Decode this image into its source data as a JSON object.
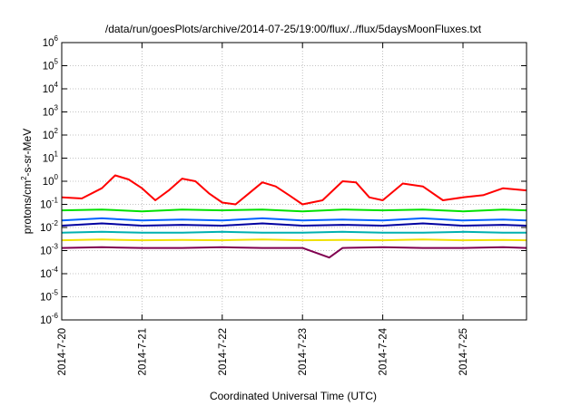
{
  "chart_data": {
    "type": "line",
    "title": "/data/run/goesPlots/archive/2014-07-25/19:00/flux/../flux/5daysMoonFluxes.txt",
    "xlabel": "Coordinated Universal Time (UTC)",
    "ylabel_parts": [
      "protons/cm",
      "2",
      "-s-sr-MeV"
    ],
    "y_scale": "log",
    "ylim": [
      1e-06,
      1000000.0
    ],
    "xlim": [
      "2014-07-20",
      "2014-07-25T19:00"
    ],
    "x_tick_labels": [
      "2014-7-20",
      "2014-7-21",
      "2014-7-22",
      "2014-7-23",
      "2014-7-24",
      "2014-7-25"
    ],
    "y_ticks": [
      {
        "base": "10",
        "exp": "-6"
      },
      {
        "base": "10",
        "exp": "-5"
      },
      {
        "base": "10",
        "exp": "-4"
      },
      {
        "base": "10",
        "exp": "-3"
      },
      {
        "base": "10",
        "exp": "-2"
      },
      {
        "base": "10",
        "exp": "-1"
      },
      {
        "base": "10",
        "exp": "0"
      },
      {
        "base": "10",
        "exp": "1"
      },
      {
        "base": "10",
        "exp": "2"
      },
      {
        "base": "10",
        "exp": "3"
      },
      {
        "base": "10",
        "exp": "4"
      },
      {
        "base": "10",
        "exp": "5"
      },
      {
        "base": "10",
        "exp": "6"
      }
    ],
    "grid": true,
    "series": [
      {
        "color": "#ff0000",
        "x": [
          "2014-07-20T00:00",
          "2014-07-20T06:00",
          "2014-07-20T12:00",
          "2014-07-20T16:00",
          "2014-07-20T20:00",
          "2014-07-21T00:00",
          "2014-07-21T04:00",
          "2014-07-21T08:00",
          "2014-07-21T12:00",
          "2014-07-21T16:00",
          "2014-07-21T20:00",
          "2014-07-22T00:00",
          "2014-07-22T04:00",
          "2014-07-22T08:00",
          "2014-07-22T12:00",
          "2014-07-22T16:00",
          "2014-07-22T20:00",
          "2014-07-23T00:00",
          "2014-07-23T06:00",
          "2014-07-23T12:00",
          "2014-07-23T16:00",
          "2014-07-23T20:00",
          "2014-07-24T00:00",
          "2014-07-24T06:00",
          "2014-07-24T12:00",
          "2014-07-24T18:00",
          "2014-07-25T00:00",
          "2014-07-25T06:00",
          "2014-07-25T12:00",
          "2014-07-25T19:00"
        ],
        "values": [
          0.2,
          0.18,
          0.5,
          1.8,
          1.2,
          0.5,
          0.15,
          0.4,
          1.3,
          1.0,
          0.3,
          0.12,
          0.1,
          0.3,
          0.9,
          0.6,
          0.25,
          0.1,
          0.15,
          1.0,
          0.9,
          0.2,
          0.15,
          0.8,
          0.6,
          0.15,
          0.2,
          0.25,
          0.5,
          0.4
        ]
      },
      {
        "color": "#00e000",
        "x": [
          "2014-07-20T00:00",
          "2014-07-20T12:00",
          "2014-07-21T00:00",
          "2014-07-21T12:00",
          "2014-07-22T00:00",
          "2014-07-22T12:00",
          "2014-07-23T00:00",
          "2014-07-23T12:00",
          "2014-07-24T00:00",
          "2014-07-24T12:00",
          "2014-07-25T00:00",
          "2014-07-25T12:00",
          "2014-07-25T19:00"
        ],
        "values": [
          0.055,
          0.06,
          0.05,
          0.06,
          0.055,
          0.06,
          0.05,
          0.06,
          0.055,
          0.06,
          0.05,
          0.06,
          0.055
        ]
      },
      {
        "color": "#0060ff",
        "x": [
          "2014-07-20T00:00",
          "2014-07-20T12:00",
          "2014-07-21T00:00",
          "2014-07-21T12:00",
          "2014-07-22T00:00",
          "2014-07-22T12:00",
          "2014-07-23T00:00",
          "2014-07-23T12:00",
          "2014-07-24T00:00",
          "2014-07-24T12:00",
          "2014-07-25T00:00",
          "2014-07-25T12:00",
          "2014-07-25T19:00"
        ],
        "values": [
          0.02,
          0.025,
          0.02,
          0.022,
          0.02,
          0.025,
          0.02,
          0.022,
          0.02,
          0.025,
          0.02,
          0.022,
          0.02
        ]
      },
      {
        "color": "#0000a0",
        "x": [
          "2014-07-20T00:00",
          "2014-07-20T12:00",
          "2014-07-21T00:00",
          "2014-07-21T12:00",
          "2014-07-22T00:00",
          "2014-07-22T12:00",
          "2014-07-23T00:00",
          "2014-07-23T12:00",
          "2014-07-24T00:00",
          "2014-07-24T12:00",
          "2014-07-25T00:00",
          "2014-07-25T12:00",
          "2014-07-25T19:00"
        ],
        "values": [
          0.012,
          0.015,
          0.012,
          0.013,
          0.012,
          0.015,
          0.012,
          0.013,
          0.012,
          0.015,
          0.012,
          0.013,
          0.012
        ]
      },
      {
        "color": "#00b0b0",
        "x": [
          "2014-07-20T00:00",
          "2014-07-20T12:00",
          "2014-07-21T00:00",
          "2014-07-21T12:00",
          "2014-07-22T00:00",
          "2014-07-22T12:00",
          "2014-07-23T00:00",
          "2014-07-23T12:00",
          "2014-07-24T00:00",
          "2014-07-24T12:00",
          "2014-07-25T00:00",
          "2014-07-25T12:00",
          "2014-07-25T19:00"
        ],
        "values": [
          0.006,
          0.0065,
          0.006,
          0.006,
          0.0065,
          0.006,
          0.006,
          0.0065,
          0.006,
          0.006,
          0.0065,
          0.006,
          0.006
        ]
      },
      {
        "color": "#f0e000",
        "x": [
          "2014-07-20T00:00",
          "2014-07-20T12:00",
          "2014-07-21T00:00",
          "2014-07-21T12:00",
          "2014-07-22T00:00",
          "2014-07-22T12:00",
          "2014-07-23T00:00",
          "2014-07-23T12:00",
          "2014-07-24T00:00",
          "2014-07-24T12:00",
          "2014-07-25T00:00",
          "2014-07-25T12:00",
          "2014-07-25T19:00"
        ],
        "values": [
          0.0028,
          0.003,
          0.0028,
          0.0029,
          0.0028,
          0.003,
          0.0028,
          0.0029,
          0.0028,
          0.003,
          0.0028,
          0.0029,
          0.0028
        ]
      },
      {
        "color": "#800050",
        "x": [
          "2014-07-20T00:00",
          "2014-07-20T12:00",
          "2014-07-21T00:00",
          "2014-07-21T12:00",
          "2014-07-22T00:00",
          "2014-07-22T12:00",
          "2014-07-23T00:00",
          "2014-07-23T08:00",
          "2014-07-23T12:00",
          "2014-07-24T00:00",
          "2014-07-24T12:00",
          "2014-07-25T00:00",
          "2014-07-25T12:00",
          "2014-07-25T19:00"
        ],
        "values": [
          0.0013,
          0.0014,
          0.0013,
          0.0013,
          0.0014,
          0.0013,
          0.0013,
          0.0005,
          0.0013,
          0.0014,
          0.0013,
          0.0013,
          0.0014,
          0.0013
        ]
      }
    ]
  }
}
